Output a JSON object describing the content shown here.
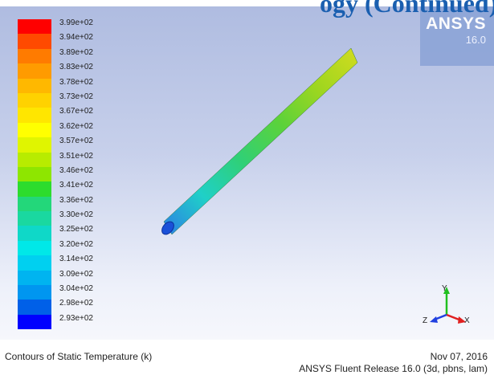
{
  "header": {
    "fragment": "ogy (Continued)"
  },
  "logo": {
    "name": "ANSYS",
    "version": "16.0"
  },
  "legend": {
    "labels": [
      "3.99e+02",
      "3.94e+02",
      "3.89e+02",
      "3.83e+02",
      "3.78e+02",
      "3.73e+02",
      "3.67e+02",
      "3.62e+02",
      "3.57e+02",
      "3.51e+02",
      "3.46e+02",
      "3.41e+02",
      "3.36e+02",
      "3.30e+02",
      "3.25e+02",
      "3.20e+02",
      "3.14e+02",
      "3.09e+02",
      "3.04e+02",
      "2.98e+02",
      "2.93e+02"
    ],
    "colors": [
      "#ff0000",
      "#ff4a00",
      "#ff7b00",
      "#ff9b00",
      "#ffb800",
      "#ffd200",
      "#ffe600",
      "#ffff00",
      "#e0f500",
      "#b8ec00",
      "#8ee600",
      "#2ddc2d",
      "#23d77a",
      "#1ad8a0",
      "#0fd8c8",
      "#00e8e8",
      "#00d0f0",
      "#00b4f0",
      "#0096f0",
      "#0060e8",
      "#0000ff"
    ]
  },
  "axes": {
    "x": "X",
    "y": "Y",
    "z": "Z"
  },
  "footer": {
    "caption": "Contours of Static Temperature (k)",
    "date": "Nov 07, 2016",
    "release": "ANSYS Fluent Release 16.0 (3d, pbns, lam)"
  }
}
